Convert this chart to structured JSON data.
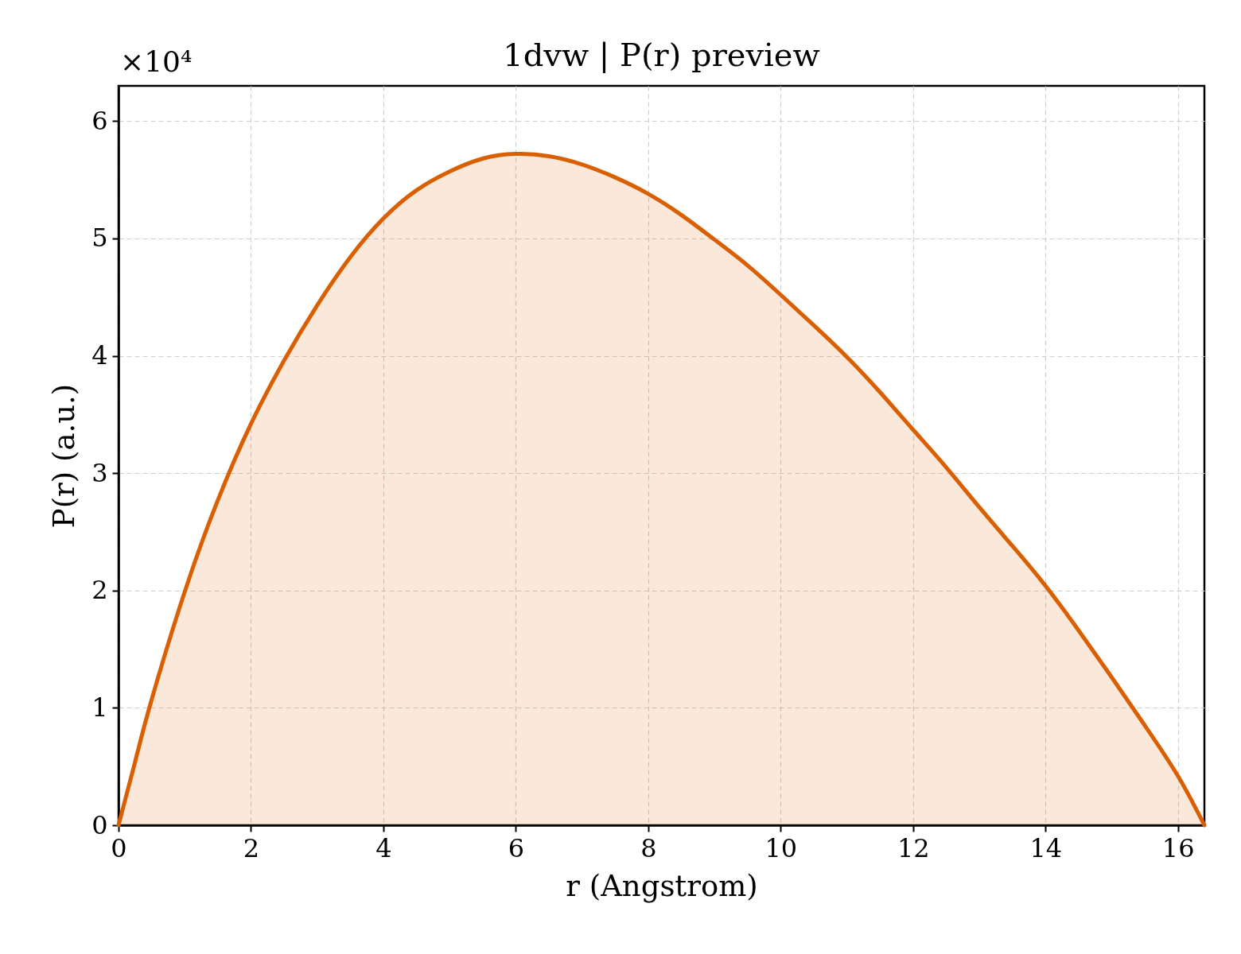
{
  "chart_data": {
    "type": "area",
    "title": "1dvw | P(r) preview",
    "xlabel": "r (Angstrom)",
    "ylabel": "P(r) (a.u.)",
    "annotations": [
      "×10⁴"
    ],
    "x": [
      0,
      0.25,
      0.5,
      1,
      1.5,
      2,
      2.5,
      3,
      3.5,
      4,
      4.5,
      5,
      5.5,
      6,
      6.5,
      7,
      7.5,
      8,
      8.5,
      9,
      9.5,
      10,
      10.5,
      11,
      11.5,
      12,
      12.5,
      13,
      13.5,
      14,
      14.5,
      15,
      15.5,
      16,
      16.4
    ],
    "series": [
      {
        "color": "#d95f02",
        "values": [
          0,
          0.54,
          1.07,
          1.99,
          2.77,
          3.42,
          3.96,
          4.43,
          4.84,
          5.17,
          5.41,
          5.57,
          5.68,
          5.72,
          5.7,
          5.63,
          5.52,
          5.38,
          5.2,
          4.99,
          4.77,
          4.52,
          4.26,
          3.99,
          3.69,
          3.37,
          3.05,
          2.71,
          2.38,
          2.04,
          1.66,
          1.26,
          0.85,
          0.42,
          0
        ]
      }
    ],
    "xlim": [
      0,
      16.4
    ],
    "ylim": [
      0,
      6.3
    ],
    "xticks": [
      0,
      2,
      4,
      6,
      8,
      10,
      12,
      14,
      16
    ],
    "yticks": [
      0,
      1,
      2,
      3,
      4,
      5,
      6
    ],
    "grid": true
  }
}
